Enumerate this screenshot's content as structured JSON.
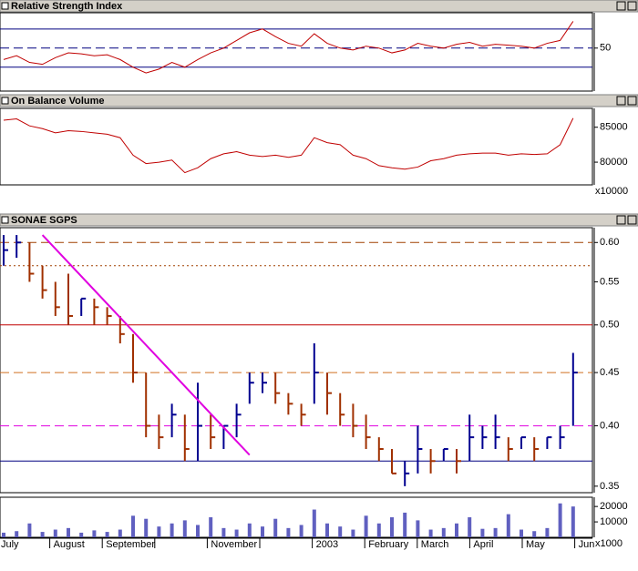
{
  "chart_data": [
    {
      "type": "line",
      "title": "Relative Strength Index",
      "color": "#c00000",
      "values": [
        38,
        42,
        35,
        33,
        40,
        45,
        44,
        42,
        43,
        38,
        30,
        24,
        28,
        35,
        30,
        38,
        45,
        50,
        58,
        66,
        70,
        62,
        55,
        52,
        65,
        55,
        50,
        48,
        52,
        50,
        45,
        48,
        55,
        52,
        50,
        54,
        56,
        52,
        54,
        53,
        52,
        50,
        55,
        58,
        78
      ],
      "ylim": [
        5,
        87
      ],
      "yticks": [
        50
      ],
      "hlines": [
        {
          "value": 70,
          "color": "#000080",
          "style": "solid"
        },
        {
          "value": 50,
          "color": "#000080",
          "style": "dashed"
        },
        {
          "value": 30,
          "color": "#000080",
          "style": "solid"
        }
      ]
    },
    {
      "type": "line",
      "title": "On Balance Volume",
      "color": "#c00000",
      "values": [
        86000,
        86200,
        85200,
        84800,
        84200,
        84500,
        84400,
        84200,
        84000,
        83500,
        81000,
        79800,
        80000,
        80300,
        78500,
        79200,
        80500,
        81200,
        81500,
        81000,
        80800,
        81000,
        80700,
        81000,
        83500,
        82800,
        82500,
        81000,
        80500,
        79500,
        79200,
        79000,
        79300,
        80200,
        80500,
        81000,
        81200,
        81300,
        81300,
        81000,
        81200,
        81100,
        81200,
        82500,
        86300
      ],
      "ylim": [
        76750,
        87700
      ],
      "yticks": [
        80000,
        85000
      ],
      "scale_label": "x10000"
    },
    {
      "type": "ohlc",
      "title": "SONAE SGPS",
      "log_scale": true,
      "up_color": "#000090",
      "down_color": "#a03000",
      "high": [
        0.61,
        0.61,
        0.6,
        0.57,
        0.55,
        0.56,
        0.53,
        0.53,
        0.52,
        0.51,
        0.49,
        0.45,
        0.41,
        0.42,
        0.41,
        0.44,
        0.41,
        0.4,
        0.42,
        0.45,
        0.45,
        0.45,
        0.43,
        0.42,
        0.48,
        0.45,
        0.43,
        0.42,
        0.41,
        0.39,
        0.38,
        0.37,
        0.4,
        0.38,
        0.38,
        0.38,
        0.41,
        0.4,
        0.41,
        0.39,
        0.39,
        0.39,
        0.39,
        0.4,
        0.47
      ],
      "low": [
        0.57,
        0.58,
        0.55,
        0.53,
        0.51,
        0.5,
        0.51,
        0.5,
        0.5,
        0.48,
        0.44,
        0.39,
        0.38,
        0.39,
        0.37,
        0.37,
        0.38,
        0.38,
        0.39,
        0.42,
        0.43,
        0.42,
        0.41,
        0.4,
        0.42,
        0.41,
        0.4,
        0.39,
        0.38,
        0.37,
        0.36,
        0.35,
        0.36,
        0.36,
        0.37,
        0.36,
        0.37,
        0.38,
        0.38,
        0.37,
        0.38,
        0.37,
        0.38,
        0.38,
        0.4
      ],
      "close": [
        0.59,
        0.6,
        0.56,
        0.54,
        0.52,
        0.51,
        0.53,
        0.52,
        0.51,
        0.49,
        0.45,
        0.4,
        0.39,
        0.41,
        0.38,
        0.4,
        0.39,
        0.4,
        0.41,
        0.44,
        0.44,
        0.43,
        0.42,
        0.41,
        0.45,
        0.43,
        0.41,
        0.4,
        0.39,
        0.38,
        0.36,
        0.36,
        0.38,
        0.37,
        0.38,
        0.37,
        0.39,
        0.39,
        0.39,
        0.38,
        0.39,
        0.38,
        0.39,
        0.39,
        0.45
      ],
      "ylim": [
        0.345,
        0.62
      ],
      "yticks": [
        {
          "value": 0.35,
          "label": "0.35"
        },
        {
          "value": 0.4,
          "label": "0.40"
        },
        {
          "value": 0.45,
          "label": "0.45"
        },
        {
          "value": 0.5,
          "label": "0.50"
        },
        {
          "value": 0.55,
          "label": "0.55"
        },
        {
          "value": 0.6,
          "label": "0.60"
        }
      ],
      "hlines": [
        {
          "value": 0.6,
          "color": "#a04000",
          "style": "dashed"
        },
        {
          "value": 0.57,
          "color": "#a04000",
          "style": "dotted"
        },
        {
          "value": 0.5,
          "color": "#c00000",
          "style": "solid"
        },
        {
          "value": 0.45,
          "color": "#d07020",
          "style": "dashed"
        },
        {
          "value": 0.4,
          "color": "#e000e0",
          "style": "dashed"
        },
        {
          "value": 0.37,
          "color": "#000080",
          "style": "solid"
        }
      ],
      "trendline": {
        "x": [
          3,
          19
        ],
        "y": [
          0.61,
          0.375
        ],
        "color": "#e000e0"
      }
    },
    {
      "type": "bar",
      "color": "#6060c0",
      "values": [
        3000,
        4000,
        9000,
        3500,
        5000,
        6000,
        3000,
        4500,
        3500,
        5000,
        14000,
        12000,
        7000,
        9000,
        11000,
        8000,
        13000,
        6000,
        5000,
        9000,
        7000,
        12000,
        6000,
        8000,
        18000,
        9000,
        7000,
        5000,
        14000,
        9000,
        13000,
        16000,
        11000,
        5000,
        6000,
        9000,
        13000,
        5500,
        6000,
        15000,
        5000,
        4000,
        6000,
        22000,
        20000
      ],
      "ylim": [
        0,
        26000
      ],
      "yticks": [
        10000,
        20000
      ],
      "scale_label": "x1000",
      "months": [
        "July",
        "August",
        "September",
        null,
        "November",
        null,
        "2003",
        "February",
        "March",
        "April",
        "May",
        "Jun"
      ]
    }
  ]
}
